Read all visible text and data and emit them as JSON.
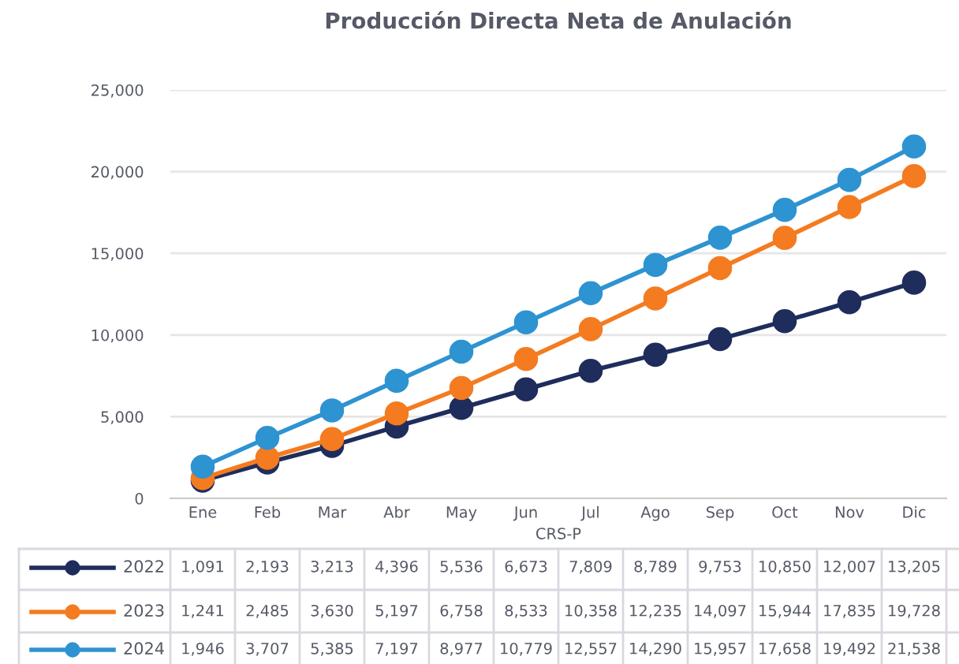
{
  "chart_data": {
    "type": "line",
    "title": "Producción Directa Neta de Anulación",
    "xlabel": "CRS-P",
    "categories": [
      "Ene",
      "Feb",
      "Mar",
      "Abr",
      "May",
      "Jun",
      "Jul",
      "Ago",
      "Sep",
      "Oct",
      "Nov",
      "Dic"
    ],
    "series": [
      {
        "name": "2022",
        "color": "#1f2d5c",
        "values": [
          1091,
          2193,
          3213,
          4396,
          5536,
          6673,
          7809,
          8789,
          9753,
          10850,
          12007,
          13205
        ],
        "value_labels": [
          "1,091",
          "2,193",
          "3,213",
          "4,396",
          "5,536",
          "6,673",
          "7,809",
          "8,789",
          "9,753",
          "10,850",
          "12,007",
          "13,205"
        ]
      },
      {
        "name": "2023",
        "color": "#f47b20",
        "values": [
          1241,
          2485,
          3630,
          5197,
          6758,
          8533,
          10358,
          12235,
          14097,
          15944,
          17835,
          19728
        ],
        "value_labels": [
          "1,241",
          "2,485",
          "3,630",
          "5,197",
          "6,758",
          "8,533",
          "10,358",
          "12,235",
          "14,097",
          "15,944",
          "17,835",
          "19,728"
        ]
      },
      {
        "name": "2024",
        "color": "#2e93d1",
        "values": [
          1946,
          3707,
          5385,
          7197,
          8977,
          10779,
          12557,
          14290,
          15957,
          17658,
          19492,
          21538
        ],
        "value_labels": [
          "1,946",
          "3,707",
          "5,385",
          "7,197",
          "8,977",
          "10,779",
          "12,557",
          "14,290",
          "15,957",
          "17,658",
          "19,492",
          "21,538"
        ]
      }
    ],
    "ylim": [
      0,
      25000
    ],
    "yticks": [
      {
        "value": 0,
        "label": "0"
      },
      {
        "value": 5000,
        "label": "5,000"
      },
      {
        "value": 10000,
        "label": "10,000"
      },
      {
        "value": 15000,
        "label": "15,000"
      },
      {
        "value": 20000,
        "label": "20,000"
      },
      {
        "value": 25000,
        "label": "25,000"
      }
    ],
    "grid": "y",
    "marker": "circle",
    "line_style": "solid",
    "legend": "bottom"
  }
}
